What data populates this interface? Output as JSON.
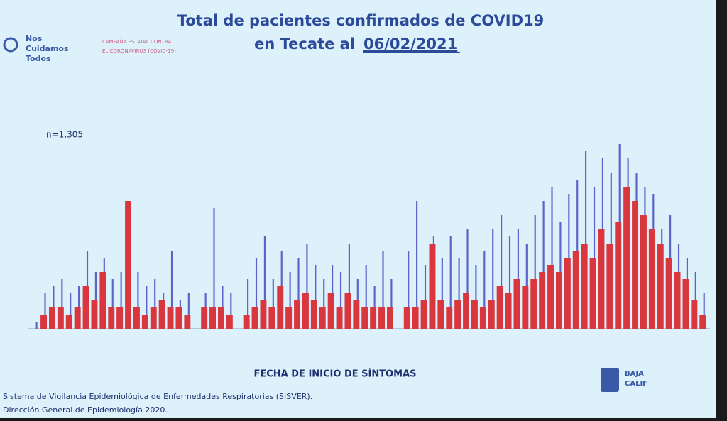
{
  "chart_data": {
    "type": "bar",
    "title_line1": "Total de pacientes confirmados de COVID19",
    "title_line2": "en Tecate al",
    "title_date": "06/02/2021",
    "annotation": "n=1,305",
    "x_label": "FECHA DE INICIO DE SÍNTOMAS",
    "logo_text": [
      "Nos",
      "Cuidamos",
      "Todos"
    ],
    "campaign": [
      "CAMPAÑA ESTATAL CONTRA",
      "EL CORONAVIRUS (COVID-19)"
    ],
    "source": [
      "Sistema de Vigilancia Epidemiológica de Enfermedades Respiratorias (SISVER).",
      "Dirección General de Epidemiología 2020."
    ],
    "state_logo": [
      "BAJA",
      "CALIF"
    ],
    "categories": [
      null,
      null,
      null,
      null,
      null,
      null,
      null,
      null,
      null,
      null,
      null,
      null,
      null,
      null,
      null,
      null,
      null,
      null,
      null,
      null,
      null,
      null,
      null,
      null,
      null,
      null,
      null,
      null,
      null,
      null,
      null,
      null,
      null,
      null,
      null,
      null,
      null,
      null,
      null,
      null,
      null,
      null,
      null,
      null,
      null,
      null,
      null,
      null,
      null,
      null,
      null,
      null,
      null,
      null,
      null,
      null,
      null,
      null,
      null,
      null,
      null,
      null,
      null,
      null,
      null,
      null,
      null,
      null,
      null,
      null,
      null,
      null,
      null,
      null,
      null,
      null,
      null,
      null,
      null,
      null
    ],
    "series": [
      {
        "color": "#d9363e",
        "values": [
          0,
          2,
          3,
          3,
          2,
          3,
          6,
          4,
          8,
          3,
          3,
          18,
          3,
          2,
          3,
          4,
          3,
          3,
          2,
          0,
          3,
          3,
          3,
          2,
          0,
          2,
          3,
          4,
          3,
          6,
          3,
          4,
          5,
          4,
          3,
          5,
          3,
          5,
          4,
          3,
          3,
          3,
          3,
          0,
          3,
          3,
          4,
          12,
          4,
          3,
          4,
          5,
          4,
          3,
          4,
          6,
          5,
          7,
          6,
          7,
          8,
          9,
          8,
          10,
          11,
          12,
          10,
          14,
          12,
          15,
          20,
          18,
          16,
          14,
          12,
          10,
          8,
          7,
          4,
          2
        ]
      },
      {
        "color": "#5b63c9",
        "values": [
          1,
          5,
          6,
          7,
          5,
          6,
          11,
          8,
          10,
          7,
          8,
          18,
          8,
          6,
          7,
          5,
          11,
          4,
          5,
          0,
          5,
          17,
          6,
          5,
          0,
          7,
          10,
          13,
          7,
          11,
          8,
          10,
          12,
          9,
          7,
          9,
          8,
          12,
          7,
          9,
          6,
          11,
          7,
          0,
          11,
          18,
          9,
          13,
          10,
          13,
          10,
          14,
          9,
          11,
          14,
          16,
          13,
          14,
          12,
          16,
          18,
          20,
          15,
          19,
          21,
          25,
          20,
          24,
          22,
          26,
          24,
          22,
          20,
          19,
          14,
          16,
          12,
          10,
          8,
          5
        ]
      }
    ],
    "ylim": [
      0,
      26
    ]
  }
}
